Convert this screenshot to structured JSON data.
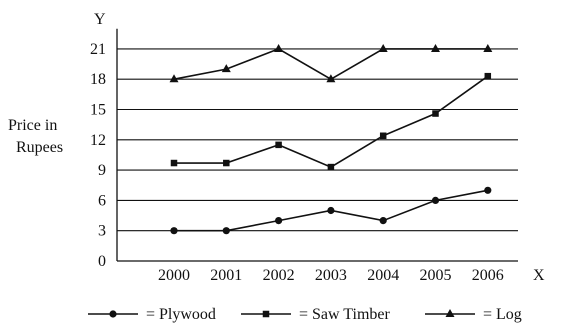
{
  "chart_data": {
    "type": "line",
    "x_axis_letter": "X",
    "y_axis_letter": "Y",
    "ylabel_lines": [
      "Price in",
      "Rupees"
    ],
    "categories": [
      "2000",
      "2001",
      "2002",
      "2003",
      "2004",
      "2005",
      "2006"
    ],
    "yticks": [
      0,
      3,
      6,
      9,
      12,
      15,
      18,
      21
    ],
    "ylim": [
      0,
      23
    ],
    "grid": true,
    "legend_placement": "bottom",
    "series": [
      {
        "name": "= Plywood",
        "marker": "circle",
        "values": [
          3,
          3,
          4,
          5,
          4,
          6,
          7
        ]
      },
      {
        "name": "= Saw Timber",
        "marker": "square",
        "values": [
          9.7,
          9.7,
          11.5,
          9.3,
          12.4,
          14.6,
          18.3
        ]
      },
      {
        "name": "= Log",
        "marker": "triangle",
        "values": [
          18,
          19,
          21,
          18,
          21,
          21,
          21
        ]
      }
    ],
    "colors": {
      "line": "#111111",
      "grid": "#111111"
    }
  }
}
